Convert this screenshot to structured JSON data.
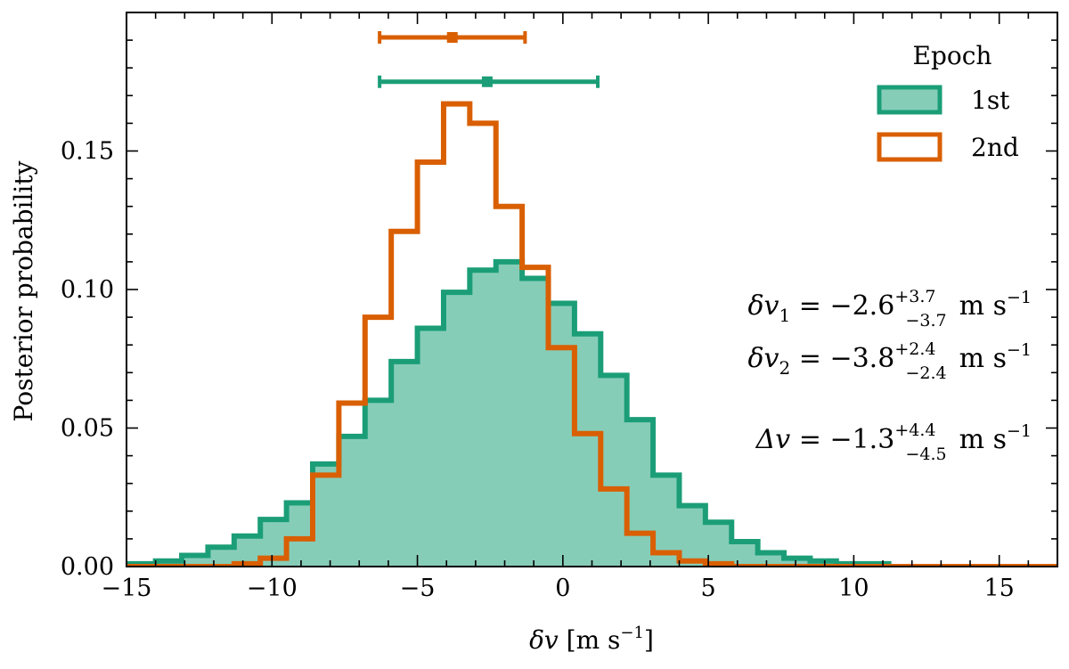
{
  "chart_data": {
    "type": "histogram",
    "xlabel": "δv [m s⁻¹]",
    "ylabel": "Posterior probability",
    "xlim": [
      -15,
      17
    ],
    "ylim": [
      0,
      0.2
    ],
    "xticks": [
      -15,
      -10,
      -5,
      0,
      5,
      10,
      15
    ],
    "xtick_labels": [
      "−15",
      "−10",
      "−5",
      "0",
      "5",
      "10",
      "15"
    ],
    "yticks": [
      0.0,
      0.05,
      0.1,
      0.15
    ],
    "ytick_labels": [
      "0.00",
      "0.05",
      "0.10",
      "0.15"
    ],
    "grid": false,
    "legend": {
      "title": "Epoch",
      "placement": "top-right",
      "entries": [
        "1st",
        "2nd"
      ]
    },
    "series": [
      {
        "name": "1st",
        "style": "filled-step",
        "color": "#1b9e77",
        "fill": "#86cdb8",
        "bin_edges": [
          -15.8,
          -14.9,
          -14.0,
          -13.1,
          -12.2,
          -11.3,
          -10.4,
          -9.5,
          -8.6,
          -7.7,
          -6.8,
          -5.9,
          -5.0,
          -4.1,
          -3.2,
          -2.3,
          -1.4,
          -0.5,
          0.4,
          1.3,
          2.2,
          3.1,
          4.0,
          4.9,
          5.8,
          6.7,
          7.6,
          8.5,
          9.4,
          10.3,
          11.2,
          12.1,
          13.0,
          13.9,
          14.8,
          15.7,
          16.6,
          17.5
        ],
        "values": [
          0.0,
          0.001,
          0.002,
          0.004,
          0.007,
          0.011,
          0.017,
          0.023,
          0.037,
          0.047,
          0.06,
          0.074,
          0.086,
          0.099,
          0.107,
          0.11,
          0.104,
          0.095,
          0.084,
          0.069,
          0.053,
          0.033,
          0.022,
          0.016,
          0.009,
          0.005,
          0.003,
          0.002,
          0.001,
          0.001,
          0.0,
          0.0,
          0.0,
          0.0,
          0.0,
          0.0,
          0.0
        ],
        "summary": {
          "median": -2.6,
          "err_plus": 3.7,
          "err_minus": 3.7
        }
      },
      {
        "name": "2nd",
        "style": "step",
        "color": "#d95f02",
        "bin_edges": [
          -15.8,
          -14.9,
          -14.0,
          -13.1,
          -12.2,
          -11.3,
          -10.4,
          -9.5,
          -8.6,
          -7.7,
          -6.8,
          -5.9,
          -5.0,
          -4.1,
          -3.2,
          -2.3,
          -1.4,
          -0.5,
          0.4,
          1.3,
          2.2,
          3.1,
          4.0,
          4.9,
          5.8,
          6.7,
          7.6,
          8.5,
          9.4,
          10.3,
          11.2,
          12.1,
          13.0,
          13.9,
          14.8,
          15.7,
          16.6,
          17.5
        ],
        "values": [
          0.0,
          0.0,
          0.0,
          0.0,
          0.0,
          0.001,
          0.003,
          0.01,
          0.033,
          0.059,
          0.09,
          0.121,
          0.146,
          0.167,
          0.16,
          0.13,
          0.108,
          0.079,
          0.048,
          0.028,
          0.012,
          0.005,
          0.002,
          0.001,
          0.0,
          0.0,
          0.0,
          0.0,
          0.0,
          0.0,
          0.0,
          0.0,
          0.0,
          0.0,
          0.0,
          0.0,
          0.0
        ],
        "summary": {
          "median": -3.8,
          "err_plus": 2.4,
          "err_minus": 2.4
        }
      }
    ],
    "error_bars": [
      {
        "series": "2nd",
        "center": -3.8,
        "low": -6.3,
        "high": -1.3,
        "y": 0.191
      },
      {
        "series": "1st",
        "center": -2.6,
        "low": -6.3,
        "high": 1.2,
        "y": 0.175
      }
    ],
    "annotations": [
      {
        "lhs": "δv",
        "lhs_sub": "1",
        "value": "−2.6",
        "sup": "+3.7",
        "sub": "−3.7",
        "unit": "m s",
        "unit_exp": "−1"
      },
      {
        "lhs": "δv",
        "lhs_sub": "2",
        "value": "−3.8",
        "sup": "+2.4",
        "sub": "−2.4",
        "unit": "m s",
        "unit_exp": "−1"
      },
      {
        "lhs": "Δv",
        "lhs_sub": "",
        "value": "−1.3",
        "sup": "+4.4",
        "sub": "−4.5",
        "unit": "m s",
        "unit_exp": "−1"
      }
    ]
  }
}
